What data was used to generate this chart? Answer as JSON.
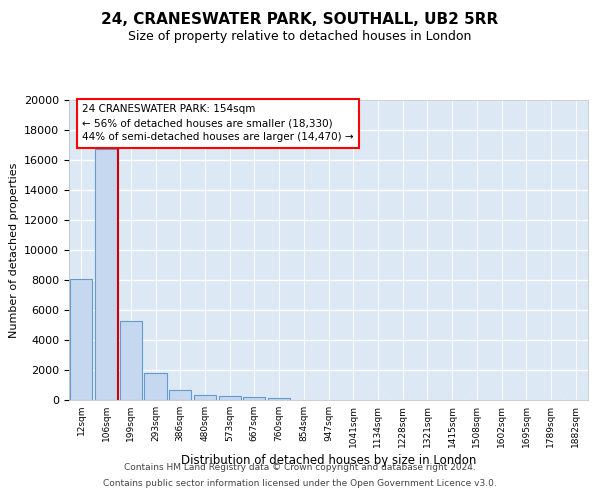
{
  "title": "24, CRANESWATER PARK, SOUTHALL, UB2 5RR",
  "subtitle": "Size of property relative to detached houses in London",
  "xlabel": "Distribution of detached houses by size in London",
  "ylabel": "Number of detached properties",
  "bar_color": "#c5d8f0",
  "bar_edge_color": "#6699cc",
  "background_color": "#dde8f5",
  "grid_color": "#c8d8ee",
  "categories": [
    "12sqm",
    "106sqm",
    "199sqm",
    "293sqm",
    "386sqm",
    "480sqm",
    "573sqm",
    "667sqm",
    "760sqm",
    "854sqm",
    "947sqm",
    "1041sqm",
    "1134sqm",
    "1228sqm",
    "1321sqm",
    "1415sqm",
    "1508sqm",
    "1602sqm",
    "1695sqm",
    "1789sqm",
    "1882sqm"
  ],
  "values": [
    8100,
    16700,
    5300,
    1800,
    700,
    350,
    270,
    200,
    160,
    0,
    0,
    0,
    0,
    0,
    0,
    0,
    0,
    0,
    0,
    0,
    0
  ],
  "ylim": [
    0,
    20000
  ],
  "yticks": [
    0,
    2000,
    4000,
    6000,
    8000,
    10000,
    12000,
    14000,
    16000,
    18000,
    20000
  ],
  "property_line_x": 1.5,
  "annotation_line1": "24 CRANESWATER PARK: 154sqm",
  "annotation_line2": "← 56% of detached houses are smaller (18,330)",
  "annotation_line3": "44% of semi-detached houses are larger (14,470) →",
  "footer_line1": "Contains HM Land Registry data © Crown copyright and database right 2024.",
  "footer_line2": "Contains public sector information licensed under the Open Government Licence v3.0."
}
